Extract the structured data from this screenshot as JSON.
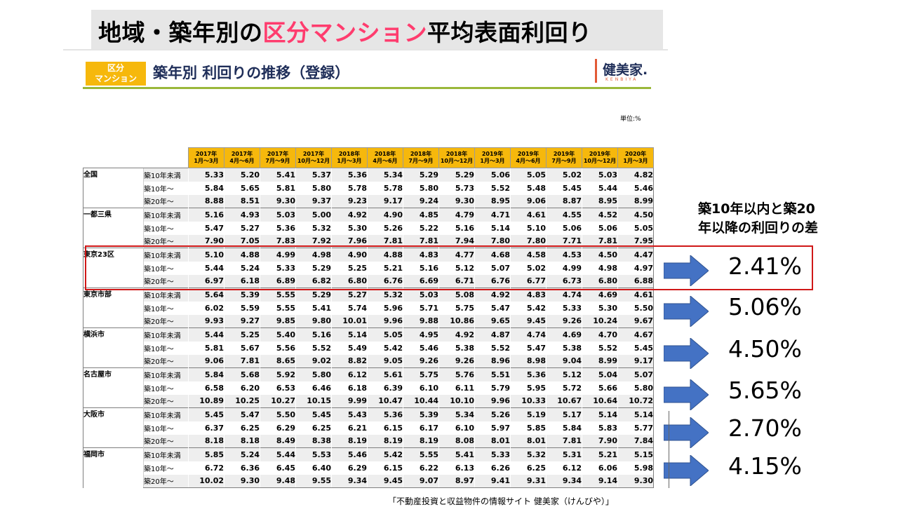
{
  "title": {
    "pre": "地域・築年別の",
    "accent": "区分マンション",
    "post": "平均表面利回り"
  },
  "header": {
    "badge_line1": "区分",
    "badge_line2": "マンション",
    "title": "築年別 利回りの推移（登録）",
    "logo": "健美家.",
    "logo_sub": "KENBIYA"
  },
  "unit": "単位:%",
  "columns": [
    [
      "2017年",
      "1月～3月"
    ],
    [
      "2017年",
      "4月～6月"
    ],
    [
      "2017年",
      "7月～9月"
    ],
    [
      "2017年",
      "10月～12月"
    ],
    [
      "2018年",
      "1月～3月"
    ],
    [
      "2018年",
      "4月～6月"
    ],
    [
      "2018年",
      "7月～9月"
    ],
    [
      "2018年",
      "10月～12月"
    ],
    [
      "2019年",
      "1月～3月"
    ],
    [
      "2019年",
      "4月～6月"
    ],
    [
      "2019年",
      "7月～9月"
    ],
    [
      "2019年",
      "10月～12月"
    ],
    [
      "2020年",
      "1月～3月"
    ]
  ],
  "age_labels": [
    "築10年未満",
    "築10年～",
    "築20年～"
  ],
  "regions": [
    {
      "name": "全国",
      "rows": [
        [
          "5.33",
          "5.20",
          "5.41",
          "5.37",
          "5.36",
          "5.34",
          "5.29",
          "5.29",
          "5.06",
          "5.05",
          "5.02",
          "5.03",
          "4.82"
        ],
        [
          "5.84",
          "5.65",
          "5.81",
          "5.80",
          "5.78",
          "5.78",
          "5.80",
          "5.73",
          "5.52",
          "5.48",
          "5.45",
          "5.44",
          "5.46"
        ],
        [
          "8.88",
          "8.51",
          "9.30",
          "9.37",
          "9.23",
          "9.17",
          "9.24",
          "9.30",
          "8.95",
          "9.06",
          "8.87",
          "8.95",
          "8.99"
        ]
      ]
    },
    {
      "name": "一都三県",
      "rows": [
        [
          "5.16",
          "4.93",
          "5.03",
          "5.00",
          "4.92",
          "4.90",
          "4.85",
          "4.79",
          "4.71",
          "4.61",
          "4.55",
          "4.52",
          "4.50"
        ],
        [
          "5.47",
          "5.27",
          "5.36",
          "5.32",
          "5.30",
          "5.26",
          "5.22",
          "5.16",
          "5.14",
          "5.10",
          "5.06",
          "5.06",
          "5.05"
        ],
        [
          "7.90",
          "7.05",
          "7.83",
          "7.92",
          "7.96",
          "7.81",
          "7.81",
          "7.94",
          "7.80",
          "7.80",
          "7.71",
          "7.81",
          "7.95"
        ]
      ]
    },
    {
      "name": "東京23区",
      "rows": [
        [
          "5.10",
          "4.88",
          "4.99",
          "4.98",
          "4.90",
          "4.88",
          "4.83",
          "4.77",
          "4.68",
          "4.58",
          "4.53",
          "4.50",
          "4.47"
        ],
        [
          "5.44",
          "5.24",
          "5.33",
          "5.29",
          "5.25",
          "5.21",
          "5.16",
          "5.12",
          "5.07",
          "5.02",
          "4.99",
          "4.98",
          "4.97"
        ],
        [
          "6.97",
          "6.18",
          "6.89",
          "6.82",
          "6.80",
          "6.76",
          "6.69",
          "6.71",
          "6.76",
          "6.77",
          "6.73",
          "6.80",
          "6.88"
        ]
      ]
    },
    {
      "name": "東京市部",
      "rows": [
        [
          "5.64",
          "5.39",
          "5.55",
          "5.29",
          "5.27",
          "5.32",
          "5.03",
          "5.08",
          "4.92",
          "4.83",
          "4.74",
          "4.69",
          "4.61"
        ],
        [
          "6.02",
          "5.59",
          "5.55",
          "5.41",
          "5.74",
          "5.96",
          "5.71",
          "5.75",
          "5.47",
          "5.42",
          "5.33",
          "5.30",
          "5.50"
        ],
        [
          "9.93",
          "9.27",
          "9.85",
          "9.80",
          "10.01",
          "9.96",
          "9.88",
          "10.86",
          "9.65",
          "9.45",
          "9.26",
          "10.24",
          "9.67"
        ]
      ]
    },
    {
      "name": "横浜市",
      "rows": [
        [
          "5.44",
          "5.25",
          "5.40",
          "5.16",
          "5.14",
          "5.05",
          "4.95",
          "4.92",
          "4.87",
          "4.74",
          "4.69",
          "4.70",
          "4.67"
        ],
        [
          "5.81",
          "5.67",
          "5.56",
          "5.52",
          "5.49",
          "5.42",
          "5.46",
          "5.38",
          "5.52",
          "5.47",
          "5.38",
          "5.52",
          "5.45"
        ],
        [
          "9.06",
          "7.81",
          "8.65",
          "9.02",
          "8.82",
          "9.05",
          "9.26",
          "9.26",
          "8.96",
          "8.98",
          "9.04",
          "8.99",
          "9.17"
        ]
      ]
    },
    {
      "name": "名古屋市",
      "rows": [
        [
          "5.84",
          "5.68",
          "5.92",
          "5.80",
          "6.12",
          "5.61",
          "5.75",
          "5.76",
          "5.51",
          "5.36",
          "5.12",
          "5.04",
          "5.07"
        ],
        [
          "6.58",
          "6.20",
          "6.53",
          "6.46",
          "6.18",
          "6.39",
          "6.10",
          "6.11",
          "5.79",
          "5.95",
          "5.72",
          "5.66",
          "5.80"
        ],
        [
          "10.89",
          "10.25",
          "10.27",
          "10.15",
          "9.99",
          "10.47",
          "10.44",
          "10.10",
          "9.96",
          "10.33",
          "10.67",
          "10.64",
          "10.72"
        ]
      ]
    },
    {
      "name": "大阪市",
      "rows": [
        [
          "5.45",
          "5.47",
          "5.50",
          "5.45",
          "5.43",
          "5.36",
          "5.39",
          "5.34",
          "5.26",
          "5.19",
          "5.17",
          "5.14",
          "5.14"
        ],
        [
          "6.37",
          "6.25",
          "6.29",
          "6.25",
          "6.21",
          "6.15",
          "6.17",
          "6.10",
          "5.97",
          "5.85",
          "5.84",
          "5.83",
          "5.77"
        ],
        [
          "8.18",
          "8.18",
          "8.49",
          "8.38",
          "8.19",
          "8.19",
          "8.19",
          "8.08",
          "8.01",
          "8.01",
          "7.81",
          "7.90",
          "7.84"
        ]
      ]
    },
    {
      "name": "福岡市",
      "rows": [
        [
          "5.85",
          "5.24",
          "5.44",
          "5.53",
          "5.46",
          "5.42",
          "5.55",
          "5.41",
          "5.33",
          "5.32",
          "5.31",
          "5.21",
          "5.15"
        ],
        [
          "6.72",
          "6.36",
          "6.45",
          "6.40",
          "6.29",
          "6.15",
          "6.22",
          "6.13",
          "6.26",
          "6.25",
          "6.12",
          "6.06",
          "5.98"
        ],
        [
          "10.02",
          "9.30",
          "9.48",
          "9.55",
          "9.34",
          "9.45",
          "9.07",
          "8.97",
          "9.41",
          "9.31",
          "9.34",
          "9.14",
          "9.30"
        ]
      ]
    }
  ],
  "diff_heading_line1": "築10年以内と築20",
  "diff_heading_line2": "年以降の利回りの差",
  "diffs": [
    "2.41%",
    "5.06%",
    "4.50%",
    "5.65%",
    "2.70%",
    "4.15%"
  ],
  "footer": "「不動産投資と収益物件の情報サイト 健美家（けんびや）」",
  "colors": {
    "accent": "#ff3c6e",
    "header_yellow": "#f6b80c",
    "arrow": "#4472c4",
    "highlight": "#d01818",
    "header_green": "#9ab83a"
  }
}
